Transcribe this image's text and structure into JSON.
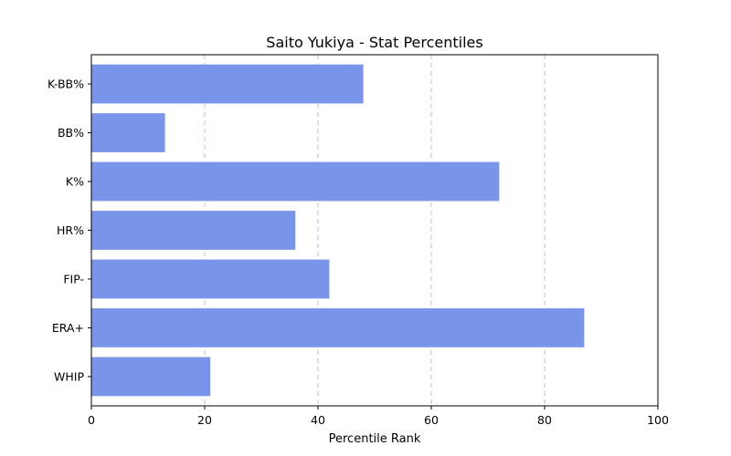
{
  "chart_data": {
    "type": "bar",
    "orientation": "horizontal",
    "title": "Saito Yukiya - Stat Percentiles",
    "xlabel": "Percentile Rank",
    "ylabel": "",
    "xlim": [
      0,
      100
    ],
    "xticks": [
      "0",
      "20",
      "40",
      "60",
      "80",
      "100"
    ],
    "categories": [
      "WHIP",
      "ERA+",
      "FIP-",
      "HR%",
      "K%",
      "BB%",
      "K-BB%"
    ],
    "values": [
      21,
      87,
      42,
      36,
      72,
      13,
      48
    ],
    "bar_color": "#7995e9",
    "grid": "x-axis dashed",
    "legend": "none"
  }
}
